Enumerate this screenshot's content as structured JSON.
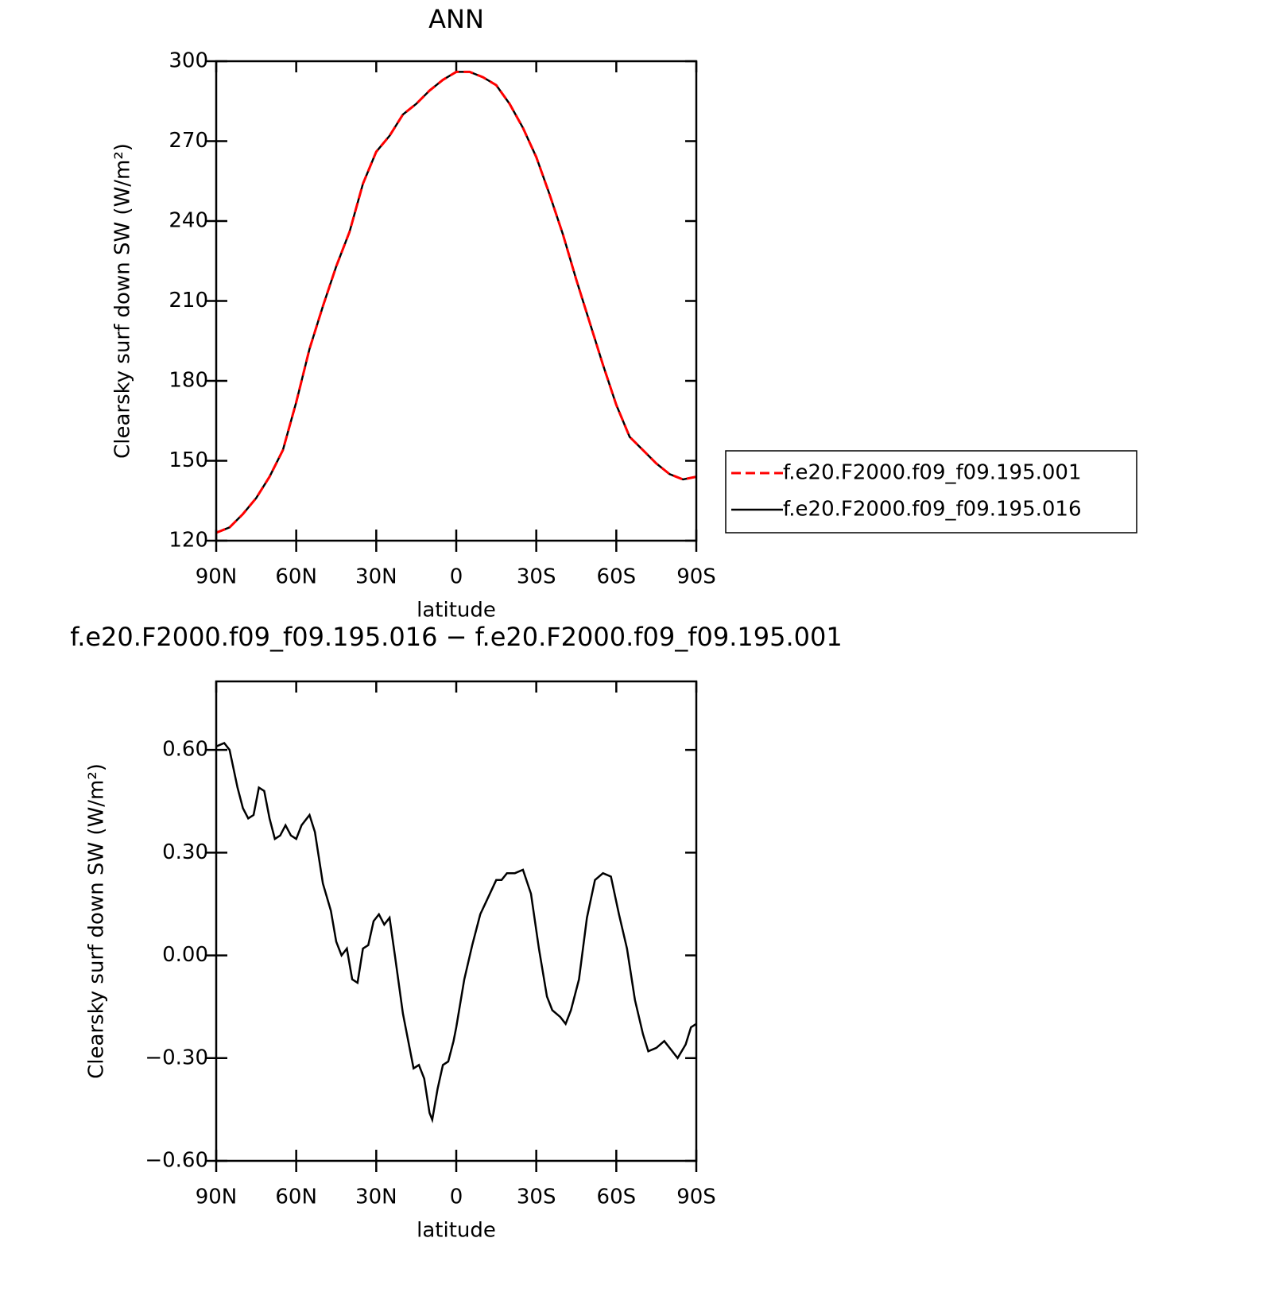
{
  "chart_data": [
    {
      "type": "line",
      "title": "ANN",
      "xlabel": "latitude",
      "ylabel": "Clearsky surf down SW (W/m²)",
      "x": [
        90,
        85,
        80,
        75,
        70,
        65,
        60,
        55,
        50,
        45,
        40,
        35,
        30,
        25,
        20,
        15,
        10,
        5,
        0,
        -5,
        -10,
        -15,
        -20,
        -25,
        -30,
        -35,
        -40,
        -45,
        -50,
        -55,
        -60,
        -65,
        -70,
        -75,
        -80,
        -85,
        -90
      ],
      "series": [
        {
          "name": "f.e20.F2000.f09_f09.195.001",
          "color": "#ff0000",
          "dash": true,
          "values": [
            123,
            125,
            130,
            136,
            144,
            154,
            172,
            192,
            208,
            223,
            236,
            254,
            266,
            272,
            280,
            284,
            289,
            293,
            296,
            296,
            294,
            291,
            284,
            275,
            264,
            250,
            235,
            218,
            202,
            186,
            171,
            159,
            154,
            149,
            145,
            143,
            144
          ]
        },
        {
          "name": "f.e20.F2000.f09_f09.195.016",
          "color": "#000000",
          "dash": false,
          "values": [
            123,
            125,
            130,
            136,
            144,
            154,
            172,
            192,
            208,
            223,
            236,
            254,
            266,
            272,
            280,
            284,
            289,
            293,
            296,
            296,
            294,
            291,
            284,
            275,
            264,
            250,
            235,
            218,
            202,
            186,
            171,
            159,
            154,
            149,
            145,
            143,
            144
          ]
        }
      ],
      "xlim": [
        90,
        -90
      ],
      "xticks": [
        {
          "value": 90,
          "label": "90N"
        },
        {
          "value": 60,
          "label": "60N"
        },
        {
          "value": 30,
          "label": "30N"
        },
        0,
        {
          "value": -30,
          "label": "30S"
        },
        {
          "value": -60,
          "label": "60S"
        },
        {
          "value": -90,
          "label": "90S"
        }
      ],
      "ylim": [
        120,
        300
      ],
      "yticks": [
        120,
        150,
        180,
        210,
        240,
        270,
        300
      ],
      "legend": "right"
    },
    {
      "type": "line",
      "title": "f.e20.F2000.f09_f09.195.016 − f.e20.F2000.f09_f09.195.001",
      "xlabel": "latitude",
      "ylabel": "Clearsky surf down SW (W/m²)",
      "x": [
        90,
        87,
        85,
        82,
        80,
        78,
        76,
        74,
        72,
        70,
        68,
        66,
        64,
        62,
        60,
        58,
        55,
        53,
        50,
        47,
        45,
        43,
        41,
        39,
        37,
        35,
        33,
        31,
        29,
        27,
        25,
        23,
        20,
        18,
        16,
        14,
        12,
        10,
        9,
        7,
        5,
        3,
        1,
        0,
        -3,
        -6,
        -9,
        -12,
        -15,
        -17,
        -19,
        -22,
        -25,
        -28,
        -31,
        -34,
        -36,
        -39,
        -41,
        -43,
        -46,
        -49,
        -52,
        -55,
        -58,
        -61,
        -64,
        -67,
        -70,
        -72,
        -75,
        -78,
        -80,
        -83,
        -86,
        -88,
        -90
      ],
      "values": [
        0.61,
        0.62,
        0.6,
        0.49,
        0.43,
        0.4,
        0.41,
        0.49,
        0.48,
        0.4,
        0.34,
        0.35,
        0.38,
        0.35,
        0.34,
        0.38,
        0.41,
        0.36,
        0.21,
        0.13,
        0.04,
        0.0,
        0.02,
        -0.07,
        -0.08,
        0.02,
        0.03,
        0.1,
        0.12,
        0.09,
        0.11,
        0.0,
        -0.17,
        -0.25,
        -0.33,
        -0.32,
        -0.36,
        -0.46,
        -0.48,
        -0.39,
        -0.32,
        -0.31,
        -0.25,
        -0.21,
        -0.07,
        0.03,
        0.12,
        0.17,
        0.22,
        0.22,
        0.24,
        0.24,
        0.25,
        0.18,
        0.02,
        -0.12,
        -0.16,
        -0.18,
        -0.2,
        -0.16,
        -0.07,
        0.11,
        0.22,
        0.24,
        0.23,
        0.12,
        0.02,
        -0.13,
        -0.23,
        -0.28,
        -0.27,
        -0.25,
        -0.27,
        -0.3,
        -0.26,
        -0.21,
        -0.2
      ],
      "color": "#000000",
      "xlim": [
        90,
        -90
      ],
      "xticks": [
        {
          "value": 90,
          "label": "90N"
        },
        {
          "value": 60,
          "label": "60N"
        },
        {
          "value": 30,
          "label": "30N"
        },
        0,
        {
          "value": -30,
          "label": "30S"
        },
        {
          "value": -60,
          "label": "60S"
        },
        {
          "value": -90,
          "label": "90S"
        }
      ],
      "ylim": [
        -0.6,
        0.8
      ],
      "yticks": [
        {
          "value": -0.6,
          "label": "−0.60"
        },
        {
          "value": -0.3,
          "label": "−0.30"
        },
        {
          "value": 0,
          "label": "0.00"
        },
        {
          "value": 0.3,
          "label": "0.30"
        },
        {
          "value": 0.6,
          "label": "0.60"
        }
      ]
    }
  ]
}
